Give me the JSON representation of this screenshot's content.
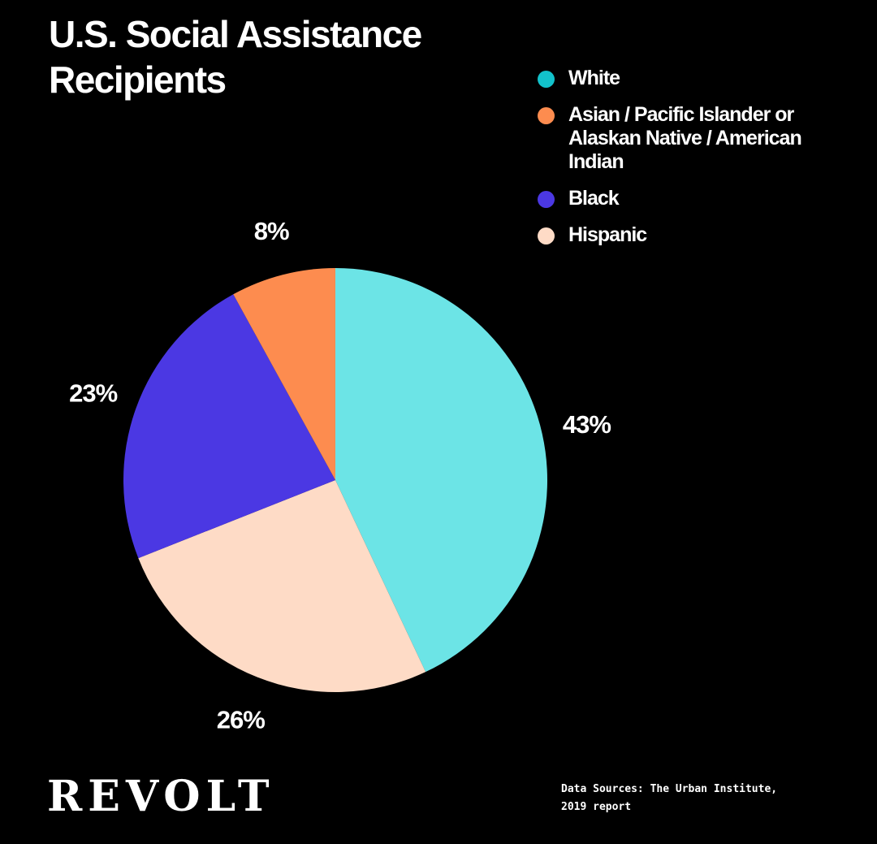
{
  "chart_data": {
    "type": "pie",
    "title": [
      "U.S. Social Assistance",
      "Recipients"
    ],
    "slices": [
      {
        "label": "White",
        "value": 43,
        "value_label": "43%",
        "color": "#6ce4e6"
      },
      {
        "label": "Hispanic",
        "value": 26,
        "value_label": "26%",
        "color": "#fedbc6"
      },
      {
        "label": "Black",
        "value": 23,
        "value_label": "23%",
        "color": "#4b38e3"
      },
      {
        "label": "Asian / Pacific Islander or Alaskan Native / American Indian",
        "value": 8,
        "value_label": "8%",
        "color": "#fd8c4f"
      }
    ],
    "legend": [
      {
        "label": "White",
        "color": "#12c2cb"
      },
      {
        "label": "Asian / Pacific Islander or Alaskan Native / American Indian",
        "color": "#fd8c4f"
      },
      {
        "label": "Black",
        "color": "#4b38e3"
      },
      {
        "label": "Hispanic",
        "color": "#fedbc6"
      }
    ],
    "legend_position": "top-right"
  },
  "brand": "REVOLT",
  "source": [
    "Data Sources: The Urban Institute,",
    "2019 report"
  ],
  "background": "#000000"
}
